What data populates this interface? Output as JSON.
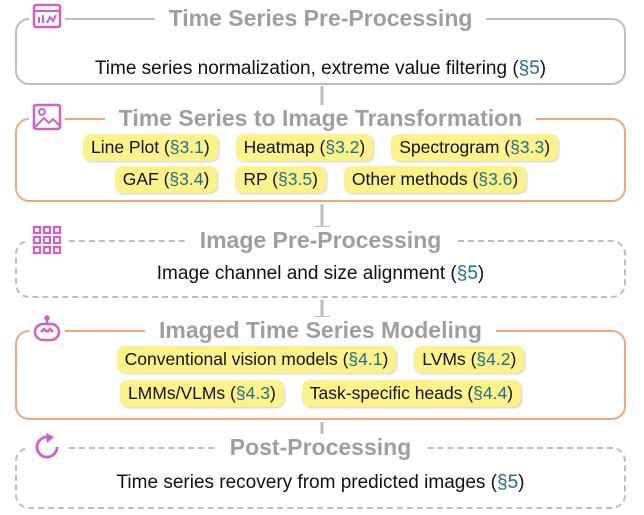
{
  "stages": [
    {
      "title": "Time Series Pre-Processing",
      "description": {
        "text": "Time series normalization, extreme value filtering (",
        "ref": "§5",
        "end": ")"
      }
    },
    {
      "title": "Time Series to Image Transformation",
      "chips": [
        [
          {
            "text": "Line Plot (",
            "ref": "§3.1",
            "end": ")"
          },
          {
            "text": "Heatmap (",
            "ref": "§3.2",
            "end": ")"
          },
          {
            "text": "Spectrogram (",
            "ref": "§3.3",
            "end": ")"
          }
        ],
        [
          {
            "text": "GAF (",
            "ref": "§3.4",
            "end": ")"
          },
          {
            "text": "RP (",
            "ref": "§3.5",
            "end": ")"
          },
          {
            "text": "Other methods (",
            "ref": "§3.6",
            "end": ")"
          }
        ]
      ]
    },
    {
      "title": "Image Pre-Processing",
      "description": {
        "text": "Image channel and size alignment (",
        "ref": "§5",
        "end": ")"
      }
    },
    {
      "title": "Imaged Time Series Modeling",
      "chips": [
        [
          {
            "text": "Conventional vision models (",
            "ref": "§4.1",
            "end": ")"
          },
          {
            "text": "LVMs (",
            "ref": "§4.2",
            "end": ")"
          }
        ],
        [
          {
            "text": "LMMs/VLMs (",
            "ref": "§4.3",
            "end": ")"
          },
          {
            "text": "Task-specific heads (",
            "ref": "§4.4",
            "end": ")"
          }
        ]
      ]
    },
    {
      "title": "Post-Processing",
      "description": {
        "text": "Time series recovery from predicted images (",
        "ref": "§5",
        "end": ")"
      }
    }
  ]
}
